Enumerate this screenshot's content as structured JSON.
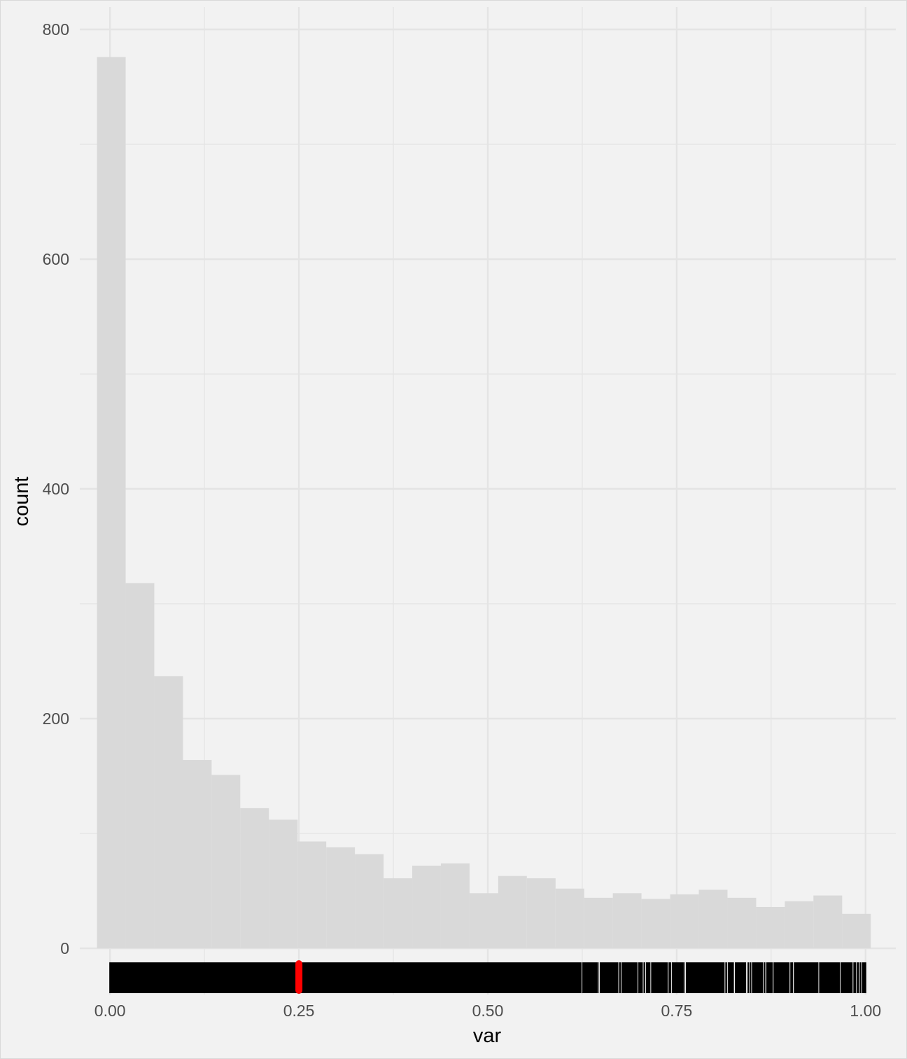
{
  "chart_data": {
    "type": "bar",
    "subtype": "histogram-with-rug",
    "title": "",
    "xlabel": "var",
    "ylabel": "count",
    "xlim": [
      -0.04,
      1.04
    ],
    "ylim": [
      0,
      800
    ],
    "x_ticks": [
      0,
      0.25,
      0.5,
      0.75,
      1
    ],
    "x_tick_labels": [
      "0.00",
      "0.25",
      "0.50",
      "0.75",
      "1.00"
    ],
    "y_ticks": [
      0,
      200,
      400,
      600,
      800
    ],
    "y_tick_labels": [
      "0",
      "200",
      "400",
      "600",
      "800"
    ],
    "grid": true,
    "legend": "none",
    "bin_edges": [
      -0.0172,
      0.0207,
      0.0586,
      0.0966,
      0.1345,
      0.1724,
      0.2103,
      0.2483,
      0.2862,
      0.3241,
      0.3621,
      0.4,
      0.4379,
      0.4759,
      0.5138,
      0.5517,
      0.5897,
      0.6276,
      0.6655,
      0.7034,
      0.7414,
      0.7793,
      0.8172,
      0.8552,
      0.8931,
      0.931,
      0.969,
      1.0069
    ],
    "values": [
      776,
      318,
      237,
      164,
      151,
      122,
      112,
      93,
      88,
      82,
      61,
      72,
      74,
      48,
      63,
      61,
      52,
      44,
      48,
      43,
      47,
      51,
      44,
      36,
      41,
      46,
      30
    ],
    "rug": {
      "range": [
        0,
        1
      ],
      "highlight_value": 0.25,
      "highlight_color": "#ff0000",
      "color": "#000000"
    },
    "colors": {
      "bar_fill": "#d9d9d9",
      "panel_background": "#f2f2f2",
      "grid": "#e4e4e4"
    }
  }
}
